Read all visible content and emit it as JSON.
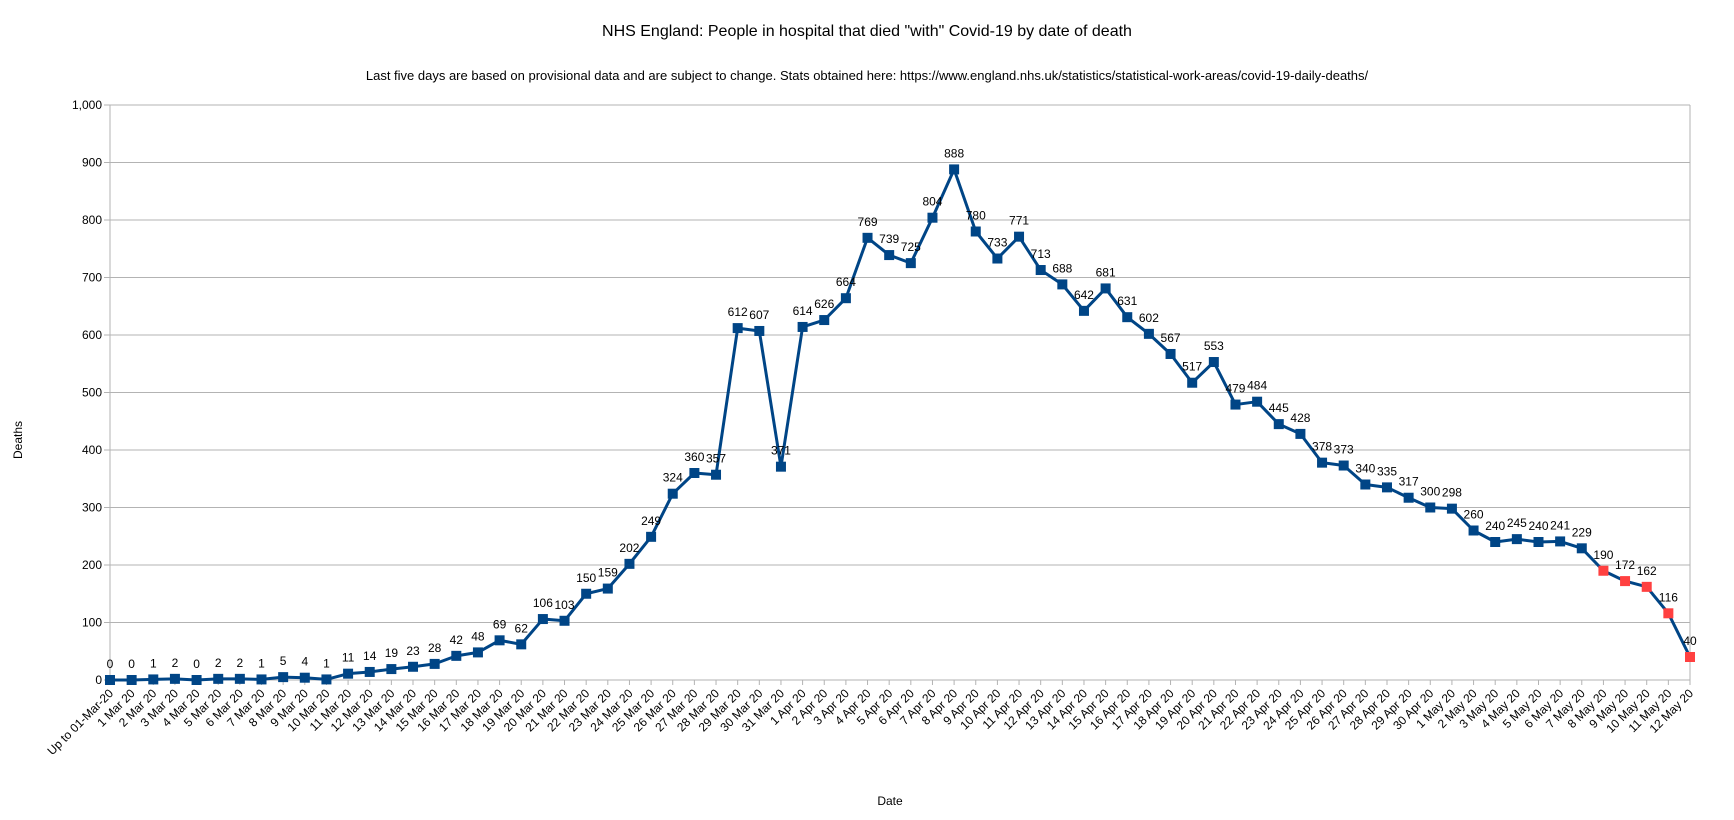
{
  "chart_data": {
    "type": "line",
    "title": "NHS England: People in hospital that died \"with\" Covid-19 by date of death",
    "subtitle": "Last five days are based on provisional data and are subject to change. Stats obtained here: https://www.england.nhs.uk/statistics/statistical-work-areas/covid-19-daily-deaths/",
    "xlabel": "Date",
    "ylabel": "Deaths",
    "ylim": [
      0,
      1000
    ],
    "y_ticks": [
      {
        "value": 0,
        "label": "0"
      },
      {
        "value": 100,
        "label": "100"
      },
      {
        "value": 200,
        "label": "200"
      },
      {
        "value": 300,
        "label": "300"
      },
      {
        "value": 400,
        "label": "400"
      },
      {
        "value": 500,
        "label": "500"
      },
      {
        "value": 600,
        "label": "600"
      },
      {
        "value": 700,
        "label": "700"
      },
      {
        "value": 800,
        "label": "800"
      },
      {
        "value": 900,
        "label": "900"
      },
      {
        "value": 1000,
        "label": "1,000"
      }
    ],
    "grid": true,
    "legend": "none",
    "colors": {
      "line": "#004586",
      "marker": "#004586",
      "provisional_marker": "#ff4040",
      "grid": "#b3b3b3"
    },
    "categories": [
      "Up to 01-Mar-20",
      "1 Mar 20",
      "2 Mar 20",
      "3 Mar 20",
      "4 Mar 20",
      "5 Mar 20",
      "6 Mar 20",
      "7 Mar 20",
      "8 Mar 20",
      "9 Mar 20",
      "10 Mar 20",
      "11 Mar 20",
      "12 Mar 20",
      "13 Mar 20",
      "14 Mar 20",
      "15 Mar 20",
      "16 Mar 20",
      "17 Mar 20",
      "18 Mar 20",
      "19 Mar 20",
      "20 Mar 20",
      "21 Mar 20",
      "22 Mar 20",
      "23 Mar 20",
      "24 Mar 20",
      "25 Mar 20",
      "26 Mar 20",
      "27 Mar 20",
      "28 Mar 20",
      "29 Mar 20",
      "30 Mar 20",
      "31 Mar 20",
      "1 Apr 20",
      "2 Apr 20",
      "3 Apr 20",
      "4 Apr 20",
      "5 Apr 20",
      "6 Apr 20",
      "7 Apr 20",
      "8 Apr 20",
      "9 Apr 20",
      "10 Apr 20",
      "11 Apr 20",
      "12 Apr 20",
      "13 Apr 20",
      "14 Apr 20",
      "15 Apr 20",
      "16 Apr 20",
      "17 Apr 20",
      "18 Apr 20",
      "19 Apr 20",
      "20 Apr 20",
      "21 Apr 20",
      "22 Apr 20",
      "23 Apr 20",
      "24 Apr 20",
      "25 Apr 20",
      "26 Apr 20",
      "27 Apr 20",
      "28 Apr 20",
      "29 Apr 20",
      "30 Apr 20",
      "1 May 20",
      "2 May 20",
      "3 May 20",
      "4 May 20",
      "5 May 20",
      "6 May 20",
      "7 May 20",
      "8 May 20",
      "9 May 20",
      "10 May 20",
      "11 May 20",
      "12 May 20"
    ],
    "series": [
      {
        "values": [
          0,
          0,
          1,
          2,
          0,
          2,
          2,
          1,
          5,
          4,
          1,
          11,
          14,
          19,
          23,
          28,
          42,
          48,
          69,
          62,
          106,
          103,
          150,
          159,
          202,
          249,
          324,
          360,
          357,
          612,
          607,
          371,
          614,
          626,
          664,
          769,
          739,
          725,
          804,
          888,
          780,
          733,
          771,
          713,
          688,
          642,
          681,
          631,
          602,
          567,
          517,
          553,
          479,
          484,
          445,
          428,
          378,
          373,
          340,
          335,
          317,
          300,
          298,
          260,
          240,
          245,
          240,
          241,
          229,
          190,
          172,
          162,
          116,
          40
        ],
        "provisional_last_n": 5
      }
    ]
  }
}
